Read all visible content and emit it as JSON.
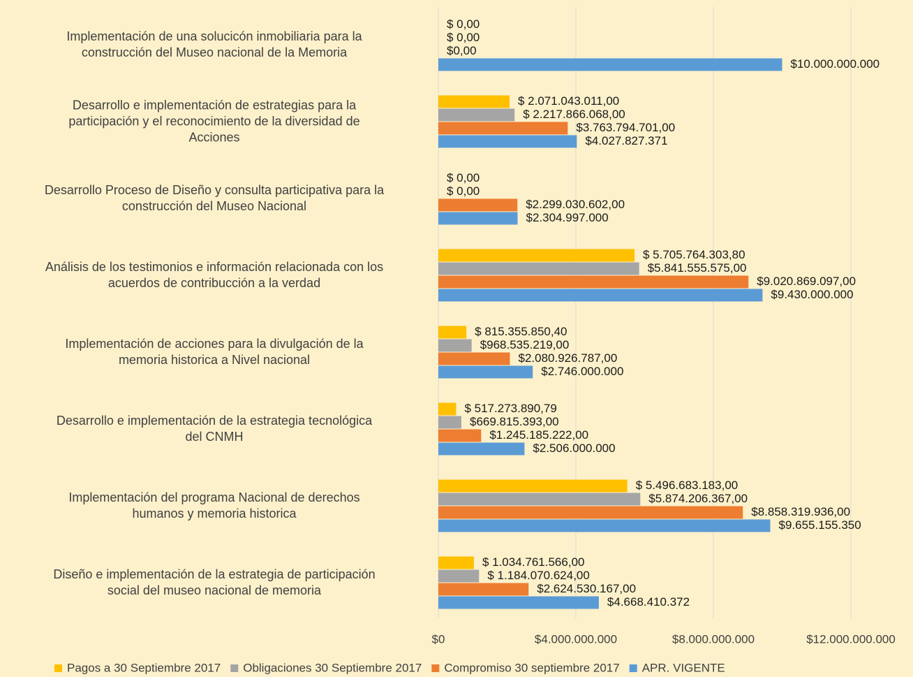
{
  "chart_data": {
    "type": "hbar",
    "categories": [
      "Implementación de una solucicón inmobiliaria para la\nconstrucción del Museo nacional de la Memoria",
      "Desarrollo e implementación de estrategias para la\nparticipación y el reconocimiento de la diversidad de\nAcciones",
      "Desarrollo Proceso de Diseño y consulta participativa para la\nconstrucción del Museo Nacional",
      "Análisis de los testimonios e información relacionada con los\nacuerdos de contribucción a la verdad",
      "Implementación de acciones para la divulgación de la\nmemoria historica a Nivel nacional",
      "Desarrollo e implementación de la estrategia tecnológica\ndel CNMH",
      "Implementación del programa Nacional de derechos\nhumanos y memoria historica",
      "Diseño e implementación de la estrategia de participación\nsocial del museo nacional de memoria"
    ],
    "series": [
      {
        "name": "Pagos a 30 Septiembre 2017",
        "color": "#ffc000",
        "values": [
          0,
          2071043011,
          0,
          5705764303.8,
          815355850.4,
          517273890.79,
          5496683183,
          1034761566
        ],
        "value_labels": [
          "$ 0,00",
          "$ 2.071.043.011,00",
          "$ 0,00",
          "$ 5.705.764.303,80",
          "$ 815.355.850,40",
          "$ 517.273.890,79",
          "$ 5.496.683.183,00",
          "$ 1.034.761.566,00"
        ]
      },
      {
        "name": "Obligaciones 30 Septiembre 2017",
        "color": "#a5a5a5",
        "values": [
          0,
          2217866068,
          0,
          5841555575,
          968535219,
          669815393,
          5874206367,
          1184070624
        ],
        "value_labels": [
          "$ 0,00",
          "$ 2.217.866.068,00",
          "$ 0,00",
          "$5.841.555.575,00",
          "$968.535.219,00",
          "$669.815.393,00",
          "$5.874.206.367,00",
          "$ 1.184.070.624,00"
        ]
      },
      {
        "name": "Compromiso 30 septiembre 2017",
        "color": "#ed7d31",
        "values": [
          0,
          3763794701,
          2299030602,
          9020869097,
          2080926787,
          1245185222,
          8858319936,
          2624530167
        ],
        "value_labels": [
          "$0,00",
          "$3.763.794.701,00",
          "$2.299.030.602,00",
          "$9.020.869.097,00",
          "$2.080.926.787,00",
          "$1.245.185.222,00",
          "$8.858.319.936,00",
          "$2.624.530.167,00"
        ]
      },
      {
        "name": "APR. VIGENTE",
        "color": "#5b9bd5",
        "values": [
          10000000000,
          4027827371,
          2304997000,
          9430000000,
          2746000000,
          2506000000,
          9655155350,
          4668410372
        ],
        "value_labels": [
          "$10.000.000.000",
          "$4.027.827.371",
          "$2.304.997.000",
          "$9.430.000.000",
          "$2.746.000.000",
          "$2.506.000.000",
          "$9.655.155.350",
          "$4.668.410.372"
        ]
      }
    ],
    "xlim": [
      0,
      12000000000
    ],
    "xticks": [
      {
        "value": 0,
        "label": "$0"
      },
      {
        "value": 4000000000,
        "label": "$4.000.000.000"
      },
      {
        "value": 8000000000,
        "label": "$8.000.000.000"
      },
      {
        "value": 12000000000,
        "label": "$12.000.000.000"
      }
    ],
    "grid": true,
    "legend": "bottom"
  }
}
